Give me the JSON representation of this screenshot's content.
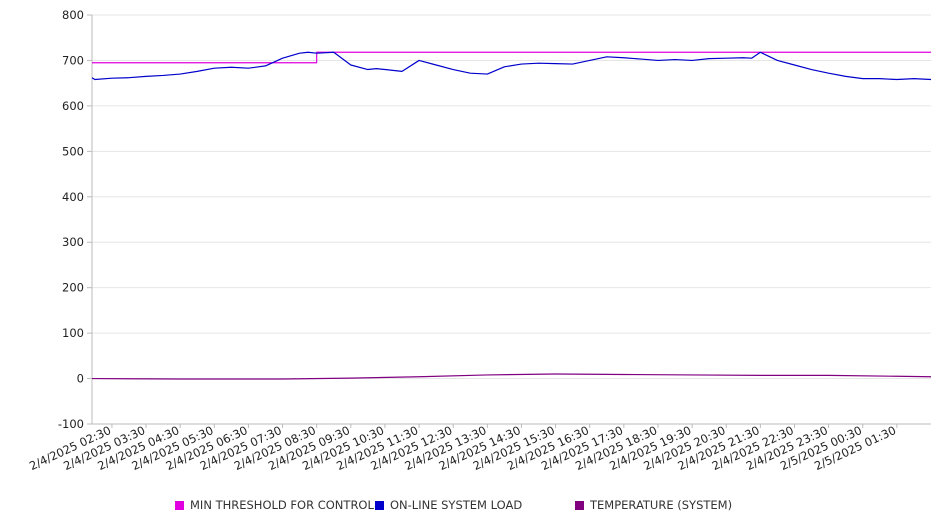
{
  "chart_data": {
    "type": "line",
    "title": "",
    "xlabel": "",
    "ylabel": "",
    "ylim": [
      -100,
      800
    ],
    "yticks": [
      800,
      700,
      600,
      500,
      400,
      300,
      200,
      100,
      0,
      -100
    ],
    "grid": true,
    "legend_position": "bottom",
    "x_range": [
      "2/4/2025 01:55",
      "2/5/2025 02:30"
    ],
    "x_tick_labels": [
      "2/4/2025 02:30",
      "2/4/2025 03:30",
      "2/4/2025 04:30",
      "2/4/2025 05:30",
      "2/4/2025 06:30",
      "2/4/2025 07:30",
      "2/4/2025 08:30",
      "2/4/2025 09:30",
      "2/4/2025 10:30",
      "2/4/2025 11:30",
      "2/4/2025 12:30",
      "2/4/2025 13:30",
      "2/4/2025 14:30",
      "2/4/2025 15:30",
      "2/4/2025 16:30",
      "2/4/2025 17:30",
      "2/4/2025 18:30",
      "2/4/2025 19:30",
      "2/4/2025 20:30",
      "2/4/2025 21:30",
      "2/4/2025 22:30",
      "2/4/2025 23:30",
      "2/5/2025 00:30",
      "2/5/2025 01:30"
    ],
    "series": [
      {
        "name": "MIN THRESHOLD FOR CONTROL",
        "color": "#e000e0",
        "x": [
          "2/4/2025 01:55",
          "2/4/2025 08:30",
          "2/4/2025 08:30",
          "2/5/2025 02:30"
        ],
        "y": [
          695,
          695,
          718,
          718
        ]
      },
      {
        "name": "ON-LINE SYSTEM LOAD",
        "color": "#0000cc",
        "x": [
          "2/4/2025 01:55",
          "2/4/2025 02:00",
          "2/4/2025 02:30",
          "2/4/2025 03:00",
          "2/4/2025 03:30",
          "2/4/2025 04:00",
          "2/4/2025 04:30",
          "2/4/2025 05:00",
          "2/4/2025 05:30",
          "2/4/2025 06:00",
          "2/4/2025 06:30",
          "2/4/2025 07:00",
          "2/4/2025 07:30",
          "2/4/2025 08:00",
          "2/4/2025 08:15",
          "2/4/2025 08:30",
          "2/4/2025 09:00",
          "2/4/2025 09:30",
          "2/4/2025 10:00",
          "2/4/2025 10:15",
          "2/4/2025 10:30",
          "2/4/2025 11:00",
          "2/4/2025 11:30",
          "2/4/2025 12:00",
          "2/4/2025 12:30",
          "2/4/2025 13:00",
          "2/4/2025 13:30",
          "2/4/2025 14:00",
          "2/4/2025 14:30",
          "2/4/2025 15:00",
          "2/4/2025 15:30",
          "2/4/2025 16:00",
          "2/4/2025 16:30",
          "2/4/2025 17:00",
          "2/4/2025 17:30",
          "2/4/2025 18:00",
          "2/4/2025 18:30",
          "2/4/2025 19:00",
          "2/4/2025 19:30",
          "2/4/2025 20:00",
          "2/4/2025 20:30",
          "2/4/2025 21:00",
          "2/4/2025 21:15",
          "2/4/2025 21:30",
          "2/4/2025 22:00",
          "2/4/2025 22:30",
          "2/4/2025 23:00",
          "2/4/2025 23:30",
          "2/5/2025 00:00",
          "2/5/2025 00:30",
          "2/5/2025 01:00",
          "2/5/2025 01:30",
          "2/5/2025 02:00",
          "2/5/2025 02:30"
        ],
        "y": [
          662,
          658,
          661,
          662,
          665,
          667,
          670,
          676,
          683,
          685,
          683,
          688,
          705,
          716,
          718,
          716,
          718,
          690,
          680,
          682,
          680,
          676,
          700,
          690,
          680,
          672,
          670,
          686,
          692,
          694,
          693,
          692,
          700,
          708,
          706,
          703,
          700,
          702,
          700,
          704,
          705,
          706,
          705,
          718,
          700,
          690,
          680,
          672,
          665,
          660,
          660,
          658,
          660,
          658
        ]
      },
      {
        "name": "TEMPERATURE (SYSTEM)",
        "color": "#800080",
        "x": [
          "2/4/2025 01:55",
          "2/4/2025 04:30",
          "2/4/2025 07:30",
          "2/4/2025 09:30",
          "2/4/2025 11:30",
          "2/4/2025 13:30",
          "2/4/2025 15:30",
          "2/4/2025 17:30",
          "2/4/2025 19:30",
          "2/4/2025 21:30",
          "2/4/2025 23:30",
          "2/5/2025 01:30",
          "2/5/2025 02:30"
        ],
        "y": [
          0,
          -1,
          -1,
          1,
          4,
          8,
          10,
          9,
          8,
          7,
          7,
          5,
          4
        ]
      }
    ]
  }
}
